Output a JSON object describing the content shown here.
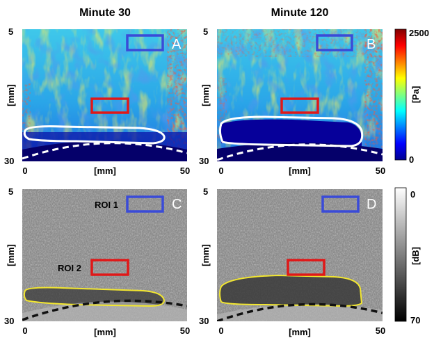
{
  "titles": {
    "left": "Minute 30",
    "right": "Minute 120"
  },
  "axes": {
    "y_top": "5",
    "y_bottom": "30",
    "y_unit": "[mm]",
    "x_left": "0",
    "x_right": "50",
    "x_unit": "[mm]",
    "x_unit_bottom_row": "[mm]"
  },
  "panels": [
    {
      "letter": "A",
      "kind": "elastography"
    },
    {
      "letter": "B",
      "kind": "elastography"
    },
    {
      "letter": "C",
      "kind": "b-mode",
      "roi_labels": [
        "ROI 1",
        "ROI 2"
      ]
    },
    {
      "letter": "D",
      "kind": "b-mode"
    }
  ],
  "colorbars": {
    "top": {
      "max": "2500",
      "min": "0",
      "unit": "[Pa]"
    },
    "bottom": {
      "top": "0",
      "bottom": "70",
      "unit": "[dB]"
    }
  },
  "colors": {
    "roi1": "#3a4bd8",
    "roi2": "#e01818",
    "contour_top": "#ffffff",
    "contour_bottom": "#f2e630",
    "dashed_top": "#ffffff",
    "dashed_bottom": "#111111"
  }
}
